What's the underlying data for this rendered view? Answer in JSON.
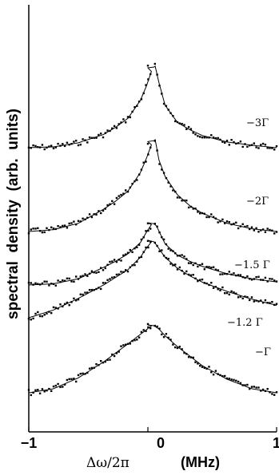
{
  "chart_data": {
    "type": "line",
    "ylabel": "spectral  density  (arb.  units)",
    "xlabel_symbol": "Δω/2π",
    "xlabel_unit": "(MHz)",
    "xlim": [
      -1,
      1
    ],
    "x_ticks": [
      "−1",
      "0",
      "1"
    ],
    "curve_labels": [
      "−3Γ",
      "−2Γ",
      "−1.5  Γ",
      "−1.2  Γ",
      "−Γ"
    ],
    "series": [
      {
        "label_index": 0,
        "x": [
          -1.0,
          -0.8,
          -0.6,
          -0.4,
          -0.3,
          -0.2,
          -0.1,
          -0.05,
          0.0,
          0.02,
          0.05,
          0.1,
          0.2,
          0.3,
          0.4,
          0.6,
          0.8,
          1.0
        ],
        "y": [
          0.0,
          0.01,
          0.06,
          0.16,
          0.25,
          0.36,
          0.58,
          0.76,
          0.98,
          1.0,
          0.8,
          0.52,
          0.31,
          0.22,
          0.15,
          0.07,
          0.03,
          0.0
        ]
      },
      {
        "label_index": 1,
        "x": [
          -1.0,
          -0.8,
          -0.6,
          -0.4,
          -0.3,
          -0.2,
          -0.1,
          -0.05,
          0.0,
          0.02,
          0.05,
          0.1,
          0.2,
          0.3,
          0.4,
          0.6,
          0.8,
          1.0
        ],
        "y": [
          0.0,
          0.02,
          0.09,
          0.24,
          0.33,
          0.44,
          0.64,
          0.8,
          0.98,
          1.0,
          0.78,
          0.6,
          0.4,
          0.28,
          0.2,
          0.09,
          0.03,
          0.0
        ]
      },
      {
        "label_index": 2,
        "x": [
          -1.0,
          -0.8,
          -0.6,
          -0.4,
          -0.3,
          -0.2,
          -0.1,
          -0.05,
          0.0,
          0.03,
          0.1,
          0.2,
          0.3,
          0.4,
          0.6,
          0.8,
          1.0
        ],
        "y": [
          0.0,
          0.02,
          0.1,
          0.28,
          0.38,
          0.5,
          0.68,
          0.85,
          1.0,
          0.95,
          0.66,
          0.48,
          0.38,
          0.3,
          0.18,
          0.1,
          0.05
        ]
      },
      {
        "label_index": 3,
        "x": [
          -1.0,
          -0.8,
          -0.6,
          -0.4,
          -0.3,
          -0.2,
          -0.1,
          -0.05,
          0.0,
          0.03,
          0.1,
          0.2,
          0.3,
          0.4,
          0.6,
          0.8,
          1.0
        ],
        "y": [
          0.0,
          0.1,
          0.25,
          0.42,
          0.52,
          0.62,
          0.78,
          0.9,
          1.0,
          0.94,
          0.78,
          0.64,
          0.54,
          0.46,
          0.34,
          0.24,
          0.16
        ]
      },
      {
        "label_index": 4,
        "x": [
          -1.0,
          -0.8,
          -0.6,
          -0.4,
          -0.2,
          -0.1,
          0.0,
          0.05,
          0.1,
          0.2,
          0.4,
          0.6,
          0.8,
          1.0
        ],
        "y": [
          0.0,
          0.06,
          0.22,
          0.45,
          0.72,
          0.86,
          1.0,
          0.94,
          0.84,
          0.68,
          0.4,
          0.2,
          0.06,
          0.0
        ]
      }
    ]
  }
}
